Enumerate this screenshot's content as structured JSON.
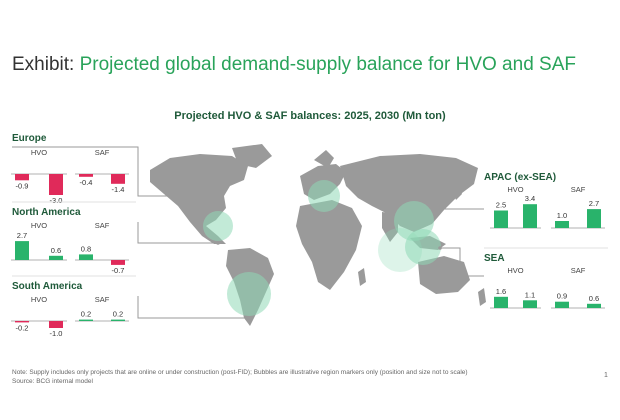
{
  "title": {
    "prefix": "Exhibit:",
    "main": "Projected global demand-supply balance for HVO and SAF"
  },
  "subtitle": "Projected HVO & SAF balances: 2025, 2030 (Mn ton)",
  "colors": {
    "region_title": "#1f5a3a",
    "positive": "#29b36b",
    "negative": "#e02a5a",
    "map_land": "#9a9a9a",
    "bubble": "#8fd9b6",
    "connector": "#9a9a9a",
    "axis": "#999999"
  },
  "chart_data": {
    "type": "bar",
    "title": "Projected HVO & SAF balances: 2025, 2030 (Mn ton)",
    "categories": [
      "2025",
      "2030"
    ],
    "products": [
      "HVO",
      "SAF"
    ],
    "regions": [
      {
        "name": "Europe",
        "series": [
          {
            "name": "HVO",
            "values": [
              -0.9,
              -3.0
            ],
            "labels": [
              "-0.9",
              "-3.0"
            ]
          },
          {
            "name": "SAF",
            "values": [
              -0.4,
              -1.4
            ],
            "labels": [
              "-0.4",
              "-1.4"
            ]
          }
        ]
      },
      {
        "name": "North America",
        "series": [
          {
            "name": "HVO",
            "values": [
              2.7,
              0.6
            ],
            "labels": [
              "2.7",
              "0.6"
            ]
          },
          {
            "name": "SAF",
            "values": [
              0.8,
              -0.7
            ],
            "labels": [
              "0.8",
              "-0.7"
            ]
          }
        ]
      },
      {
        "name": "South America",
        "series": [
          {
            "name": "HVO",
            "values": [
              -0.2,
              -1.0
            ],
            "labels": [
              "-0.2",
              "-1.0"
            ]
          },
          {
            "name": "SAF",
            "values": [
              0.2,
              0.2
            ],
            "labels": [
              "0.2",
              "0.2"
            ]
          }
        ]
      },
      {
        "name": "APAC (ex-SEA)",
        "series": [
          {
            "name": "HVO",
            "values": [
              2.5,
              3.4
            ],
            "labels": [
              "2.5",
              "3.4"
            ]
          },
          {
            "name": "SAF",
            "values": [
              1.0,
              2.7
            ],
            "labels": [
              "1.0",
              "2.7"
            ]
          }
        ]
      },
      {
        "name": "SEA",
        "series": [
          {
            "name": "HVO",
            "values": [
              1.6,
              1.1
            ],
            "labels": [
              "1.6",
              "1.1"
            ]
          },
          {
            "name": "SAF",
            "values": [
              0.9,
              0.6
            ],
            "labels": [
              "0.9",
              "0.6"
            ]
          }
        ]
      }
    ]
  },
  "footnote": {
    "note": "Note: Supply includes only projects that are online or under construction (post-FID); Bubbles are illustrative region markers only (position and size not to scale)",
    "source": "Source: BCG internal model"
  },
  "page_number": "1"
}
